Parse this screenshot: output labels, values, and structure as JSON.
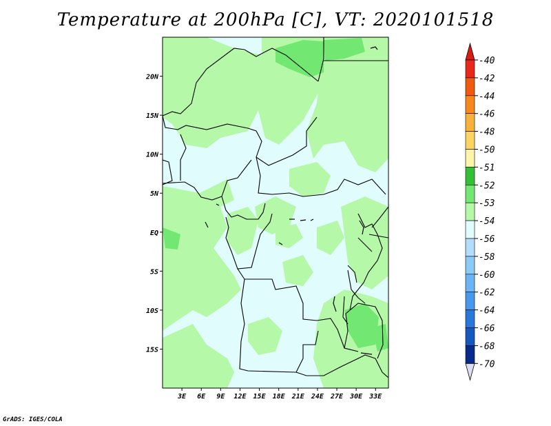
{
  "title": "Temperature at 200hPa [C], VT: 2020101518",
  "credit": "GrADS: IGES/COLA",
  "map": {
    "lon_range": [
      0,
      35
    ],
    "lat_range": [
      -20,
      25
    ],
    "lon_ticks": [
      "3E",
      "6E",
      "9E",
      "12E",
      "15E",
      "18E",
      "21E",
      "24E",
      "27E",
      "30E",
      "33E"
    ],
    "lat_ticks": [
      "20N",
      "15N",
      "10N",
      "5N",
      "EQ",
      "5S",
      "10S",
      "15S"
    ]
  },
  "colorbar": {
    "labels": [
      "-40",
      "-42",
      "-44",
      "-46",
      "-48",
      "-50",
      "-51",
      "-52",
      "-53",
      "-54",
      "-56",
      "-58",
      "-60",
      "-62",
      "-64",
      "-66",
      "-68",
      "-70"
    ],
    "colors": [
      "#e8281a",
      "#f05a10",
      "#f8881e",
      "#f8b23a",
      "#fcd464",
      "#fcf4a8",
      "#34c034",
      "#72e872",
      "#b4f8a8",
      "#e0fcfc",
      "#b4dcfc",
      "#8ccaf8",
      "#6cb4f4",
      "#4898ec",
      "#2878dc",
      "#1458c0",
      "#082a8a",
      "#dcdcf4"
    ],
    "top_arrow_color": "#d81e12",
    "bottom_arrow_color": "#dcdcf4"
  },
  "fill_colors": {
    "band_53": "#b4f8a8",
    "band_54": "#e0fcfc",
    "band_52": "#72e872"
  }
}
